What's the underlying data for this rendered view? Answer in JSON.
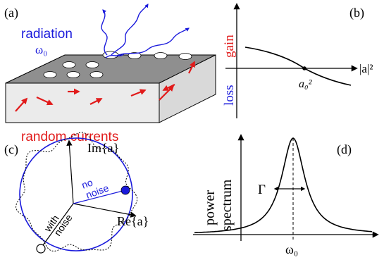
{
  "panel_a": {
    "label": "(a)",
    "radiation_label": "radiation",
    "frequency_label": "ω₀",
    "currents_label": "random currents",
    "colors": {
      "radiation": "#1a1adc",
      "currents": "#e11a1a",
      "slab_top": "#8f8f8f",
      "slab_front": "#ebebeb"
    }
  },
  "panel_b": {
    "label": "(b)",
    "gain_label": "gain",
    "loss_label": "loss",
    "x_axis_label": "|a|²",
    "threshold_label": "a₀²",
    "colors": {
      "gain": "#e11a1a",
      "loss": "#1a1adc"
    }
  },
  "panel_c": {
    "label": "(c)",
    "imag_axis_label": "Im{a}",
    "real_axis_label": "Re{a}",
    "no_noise_label_1": "no",
    "no_noise_label_2": "noise",
    "with_noise_label_1": "with",
    "with_noise_label_2": "noise",
    "colors": {
      "circle": "#1a1adc"
    }
  },
  "panel_d": {
    "label": "(d)",
    "y_axis_label_1": "power",
    "y_axis_label_2": "spectrum",
    "linewidth_label": "Γ",
    "center_label": "ω₀"
  }
}
